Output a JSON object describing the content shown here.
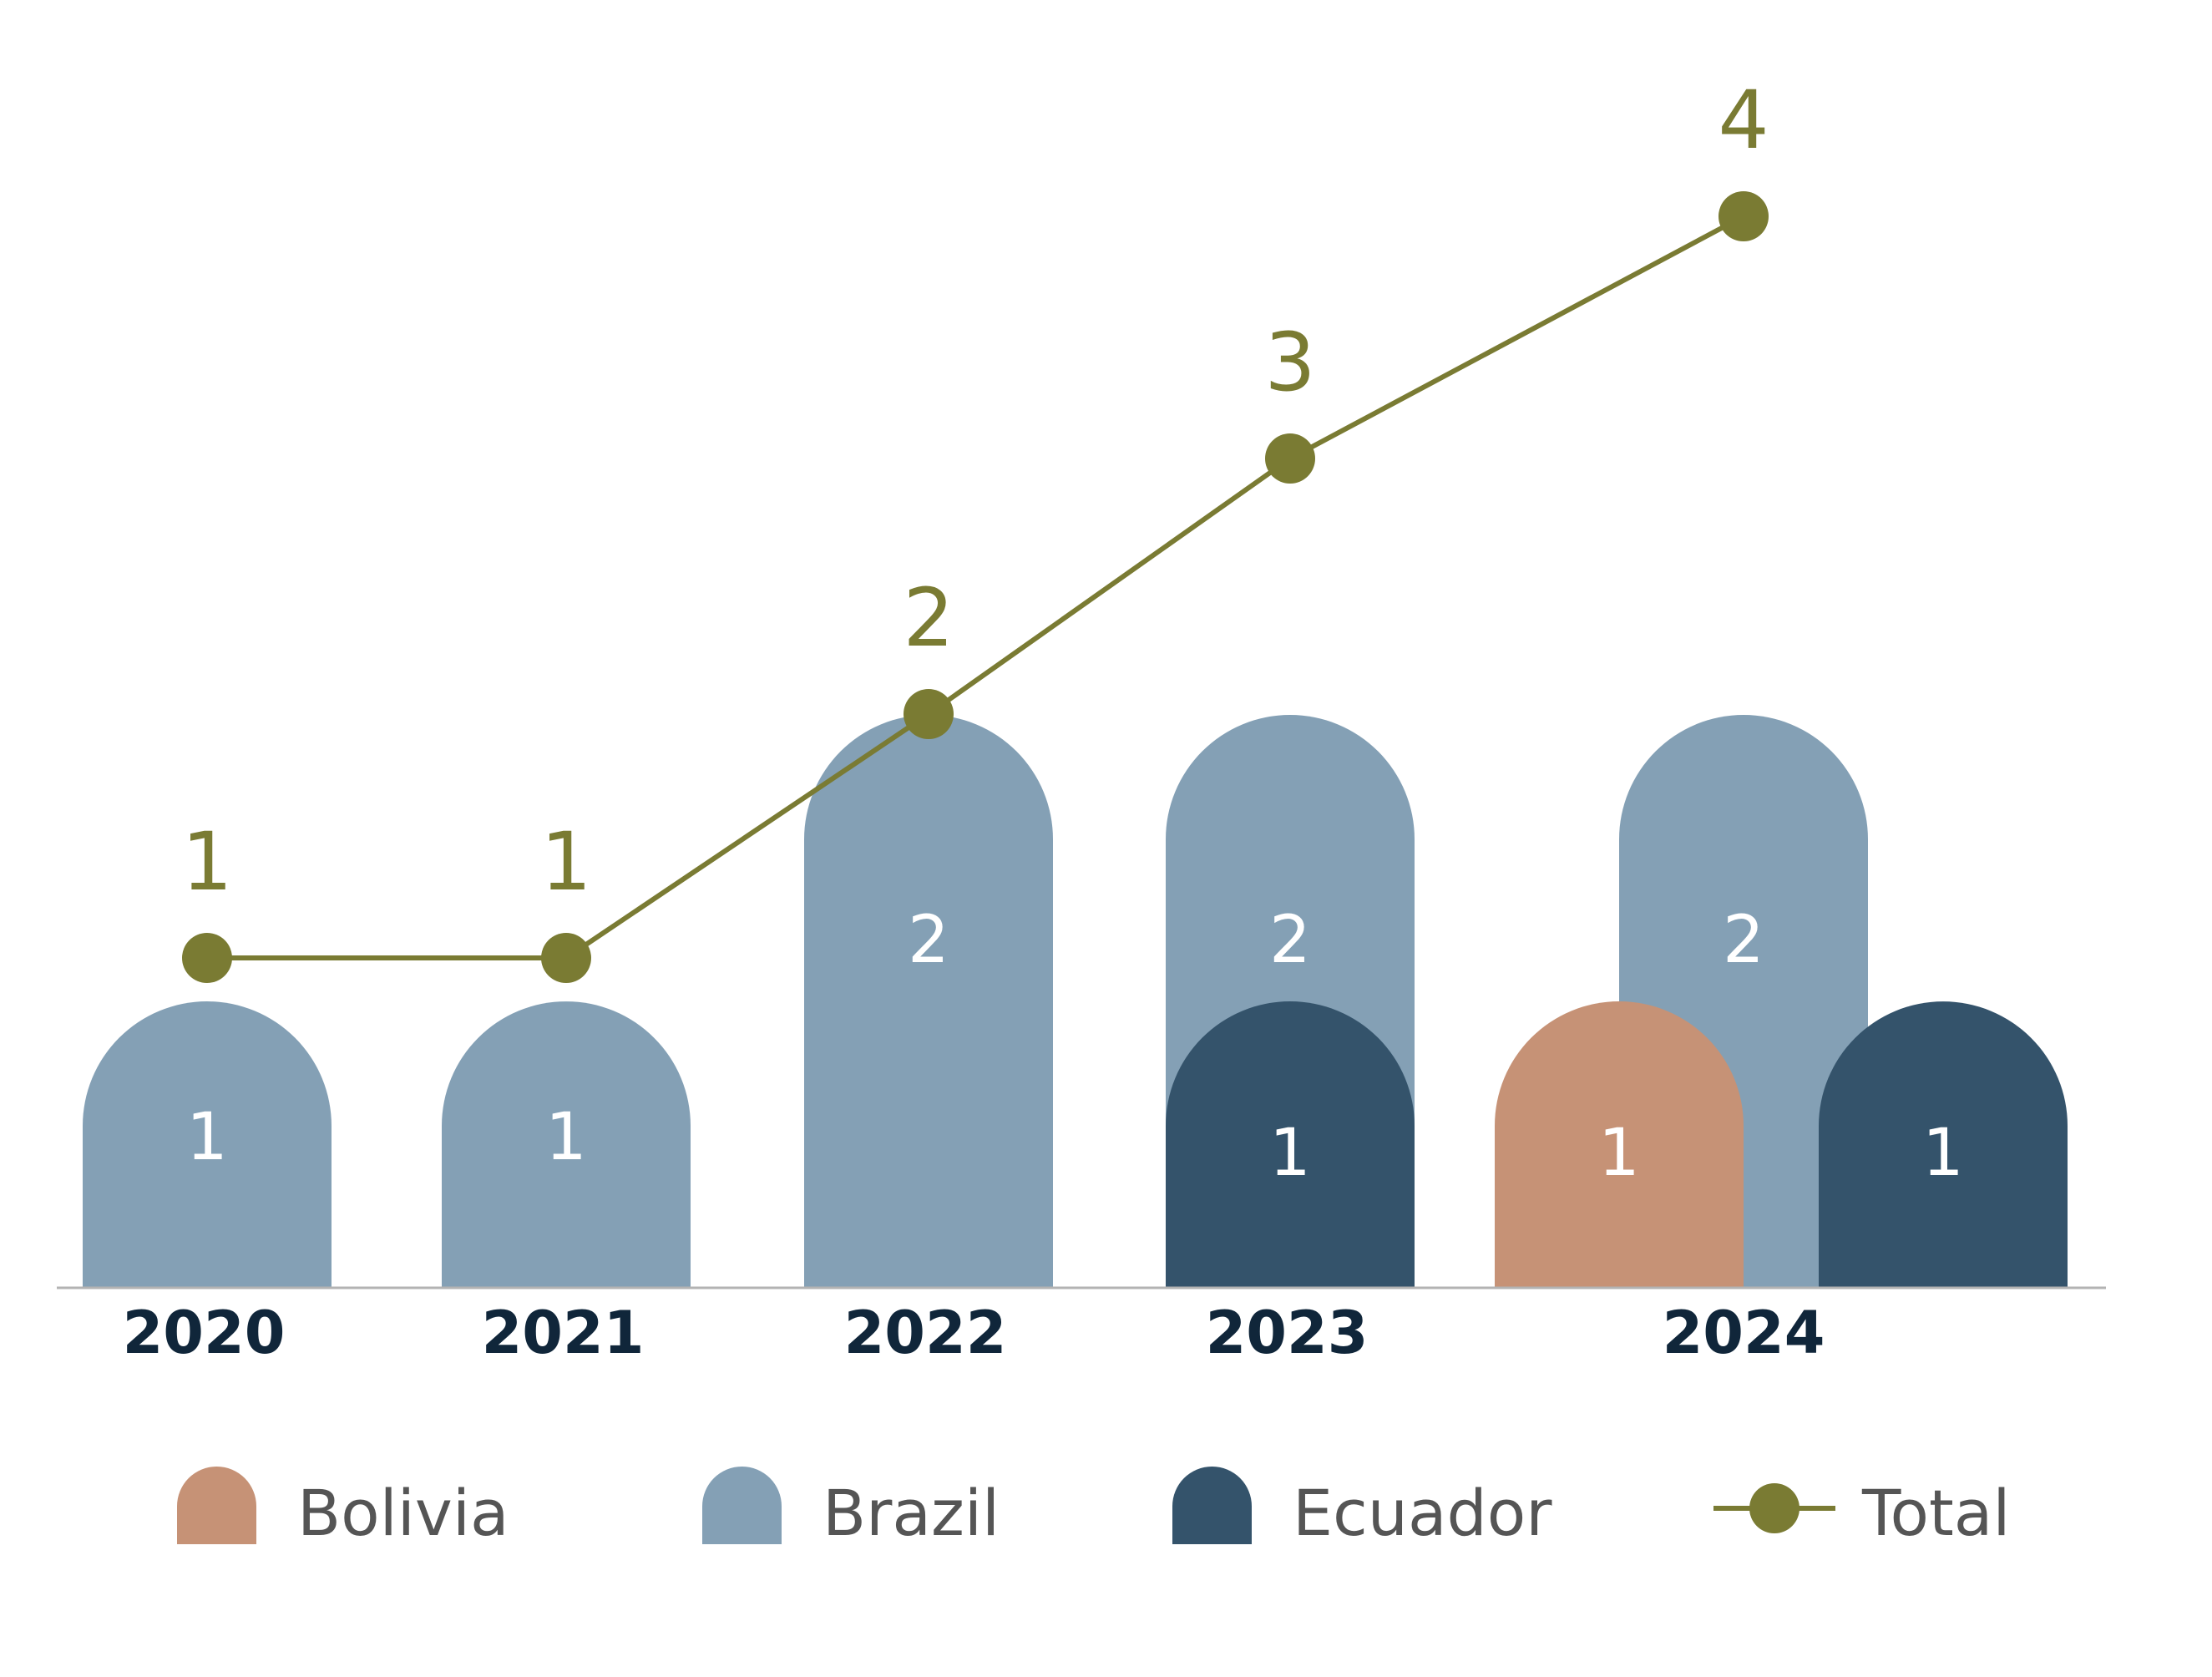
{
  "chart_data": {
    "type": "bar",
    "categories": [
      "2020",
      "2021",
      "2022",
      "2023",
      "2024"
    ],
    "series": [
      {
        "name": "Bolivia",
        "values": [
          0,
          0,
          0,
          0,
          1
        ]
      },
      {
        "name": "Brazil",
        "values": [
          1,
          1,
          2,
          2,
          2
        ]
      },
      {
        "name": "Ecuador",
        "values": [
          0,
          0,
          0,
          1,
          1
        ]
      }
    ],
    "total": {
      "name": "Total",
      "type": "line",
      "values": [
        1,
        1,
        2,
        3,
        4
      ]
    },
    "data_labels": true,
    "grid": false,
    "legend": "bottom",
    "title": "",
    "xlabel": "",
    "ylabel": ""
  },
  "colors": {
    "Bolivia": "#c69276",
    "Brazil": "#84a0b5",
    "Ecuador": "#34536b",
    "Total": "#7a7b33",
    "axis_text": "#10263a",
    "legend_text": "#555555",
    "baseline": "#b3b3b3",
    "bar_label": "#ffffff"
  }
}
